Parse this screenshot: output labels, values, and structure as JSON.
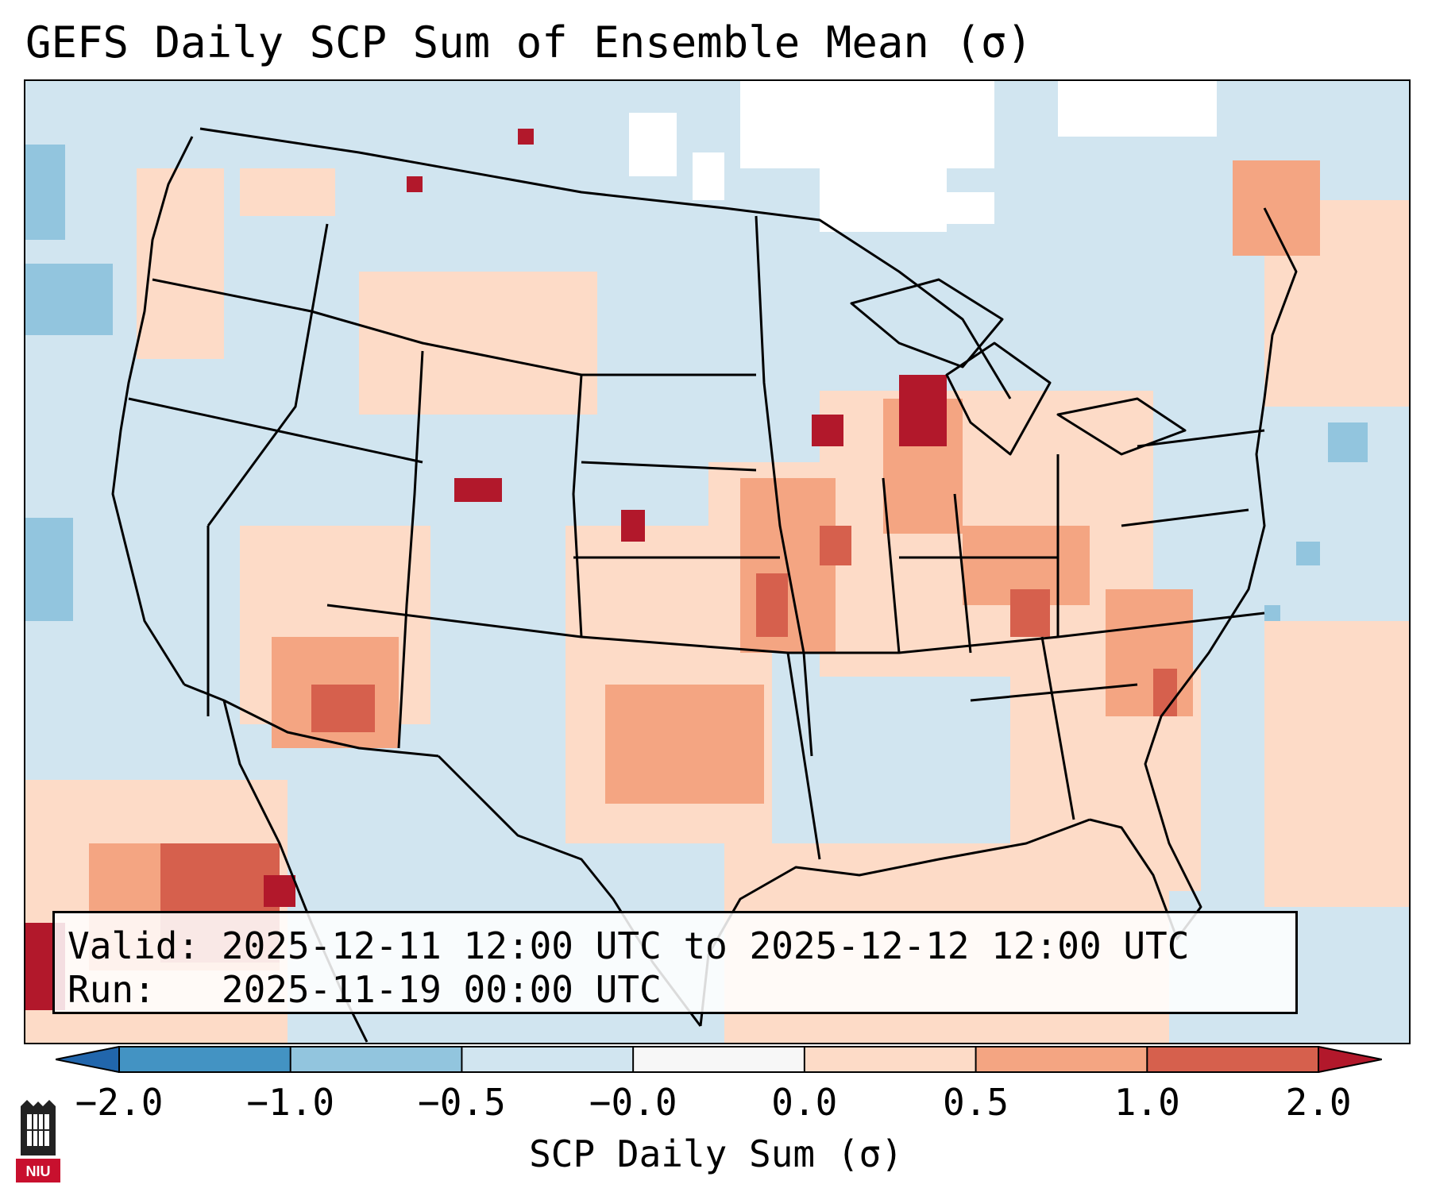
{
  "title": "GEFS Daily SCP Sum of Ensemble Mean (σ)",
  "map": {
    "product": "SCP daily sum anomaly (ensemble mean)",
    "region": "Contiguous United States",
    "colors": {
      "ocean_base": "#d1e5f0",
      "no_data": "#ffffff",
      "minus_1_to_minus_0_5": "#92c5de",
      "minus_2_to_minus_1": "#4393c3",
      "zero_to_0_5": "#fddbc7",
      "half_to_1": "#f4a582",
      "one_to_2": "#d6604d",
      "above_2": "#b2182b",
      "borders": "#000000"
    }
  },
  "info_box": {
    "valid_label": "Valid:",
    "valid_value": "2025-12-11 12:00 UTC to 2025-12-12 12:00 UTC",
    "run_label": "Run:",
    "run_value": "2025-11-19 00:00 UTC"
  },
  "colorbar": {
    "tick_labels": [
      "−2.0",
      "−1.0",
      "−0.5",
      "−0.0",
      "0.0",
      "0.5",
      "1.0",
      "2.0"
    ],
    "segment_colors": [
      "#2166ac",
      "#4393c3",
      "#92c5de",
      "#d1e5f0",
      "#f7f7f7",
      "#fddbc7",
      "#f4a582",
      "#d6604d",
      "#b2182b"
    ],
    "label": "SCP Daily Sum (σ)"
  },
  "logo": {
    "text": "NIU",
    "color": "#c8102e"
  }
}
